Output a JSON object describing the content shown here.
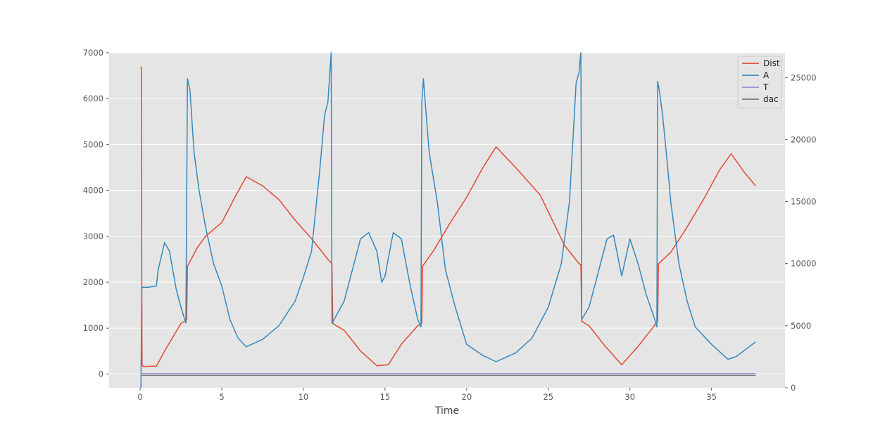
{
  "chart_data": {
    "type": "line",
    "title": "",
    "xlabel": "Time",
    "ylabel": "",
    "y2label": "",
    "xlim": [
      -1.9,
      39.5
    ],
    "ylim": [
      -300,
      7000
    ],
    "y2lim": [
      0,
      27000
    ],
    "xticks": [
      0,
      5,
      10,
      15,
      20,
      25,
      30,
      35
    ],
    "yticks": [
      0,
      1000,
      2000,
      3000,
      4000,
      5000,
      6000,
      7000
    ],
    "y2ticks": [
      0,
      5000,
      10000,
      15000,
      20000,
      25000
    ],
    "grid": true,
    "legend_position": "top-right",
    "series": [
      {
        "name": "Dist",
        "axis": "left",
        "color": "#e24a33",
        "x": [
          0.05,
          0.08,
          0.1,
          0.12,
          0.2,
          0.5,
          1.0,
          1.5,
          2.0,
          2.5,
          2.85,
          2.9,
          3.5,
          4.0,
          5.0,
          5.8,
          6.5,
          7.5,
          8.5,
          9.5,
          10.5,
          11.5,
          11.75,
          11.8,
          12.5,
          13.5,
          14.5,
          15.2,
          16.0,
          17.0,
          17.25,
          17.3,
          18.0,
          19.0,
          20.0,
          21.0,
          21.8,
          23.0,
          24.5,
          26.0,
          26.9,
          27.0,
          27.05,
          27.5,
          28.5,
          29.5,
          30.5,
          31.6,
          31.7,
          31.75,
          32.5,
          33.5,
          34.5,
          35.5,
          36.2,
          37.0,
          37.7
        ],
        "y": [
          6700,
          6600,
          2000,
          200,
          160,
          170,
          170,
          500,
          800,
          1100,
          1180,
          2350,
          2750,
          3000,
          3300,
          3850,
          4300,
          4100,
          3800,
          3350,
          2950,
          2500,
          2400,
          1100,
          950,
          500,
          180,
          200,
          650,
          1050,
          1100,
          2350,
          2700,
          3300,
          3850,
          4500,
          4950,
          4500,
          3900,
          2800,
          2400,
          2380,
          1150,
          1050,
          600,
          200,
          600,
          1100,
          1150,
          2400,
          2650,
          3200,
          3800,
          4450,
          4800,
          4400,
          4100
        ]
      },
      {
        "name": "A",
        "axis": "right",
        "color": "#348abd",
        "x": [
          0.05,
          0.1,
          0.15,
          0.5,
          1.0,
          1.1,
          1.5,
          1.8,
          2.2,
          2.5,
          2.8,
          2.9,
          3.05,
          3.3,
          3.6,
          4.0,
          4.5,
          5.0,
          5.5,
          6.0,
          6.5,
          7.5,
          8.5,
          9.5,
          10.0,
          10.5,
          11.0,
          11.3,
          11.5,
          11.7,
          11.75,
          11.8,
          12.5,
          13.0,
          13.5,
          14.0,
          14.5,
          14.8,
          15.0,
          15.5,
          16.0,
          16.5,
          17.0,
          17.2,
          17.25,
          17.35,
          17.7,
          18.2,
          18.7,
          19.3,
          20.0,
          21.0,
          21.8,
          23.0,
          24.0,
          25.0,
          25.8,
          26.3,
          26.7,
          26.9,
          26.95,
          27.0,
          27.05,
          27.5,
          28.0,
          28.6,
          29.0,
          29.5,
          30.0,
          30.5,
          31.0,
          31.5,
          31.65,
          31.7,
          31.8,
          32.0,
          32.3,
          32.5,
          33.0,
          33.5,
          34.0,
          35.0,
          36.0,
          36.5,
          37.7
        ],
        "y": [
          0,
          8100,
          8100,
          8100,
          8200,
          9500,
          11700,
          11000,
          8000,
          6500,
          5200,
          24900,
          24000,
          19000,
          16000,
          13000,
          10000,
          8200,
          5500,
          4000,
          3300,
          3900,
          5000,
          7000,
          8900,
          11000,
          17500,
          22000,
          23000,
          27000,
          5200,
          5300,
          7000,
          9500,
          12000,
          12500,
          11000,
          8500,
          9000,
          12500,
          12000,
          8500,
          5500,
          4900,
          23000,
          24900,
          19000,
          15000,
          9500,
          6500,
          3500,
          2600,
          2100,
          2800,
          4000,
          6500,
          10000,
          15000,
          24500,
          25500,
          26500,
          27000,
          5500,
          6500,
          9000,
          12000,
          12300,
          9000,
          12000,
          10000,
          7500,
          5600,
          4900,
          24700,
          24000,
          22000,
          18000,
          15000,
          10000,
          7000,
          4900,
          3500,
          2300,
          2500,
          3700
        ]
      },
      {
        "name": "T",
        "axis": "right",
        "color": "#988ed5",
        "x": [
          0.1,
          37.7
        ],
        "y": [
          1150,
          1150
        ]
      },
      {
        "name": "dac",
        "axis": "right",
        "color": "#777777",
        "x": [
          0.1,
          37.7
        ],
        "y": [
          1000,
          1000
        ]
      }
    ]
  }
}
